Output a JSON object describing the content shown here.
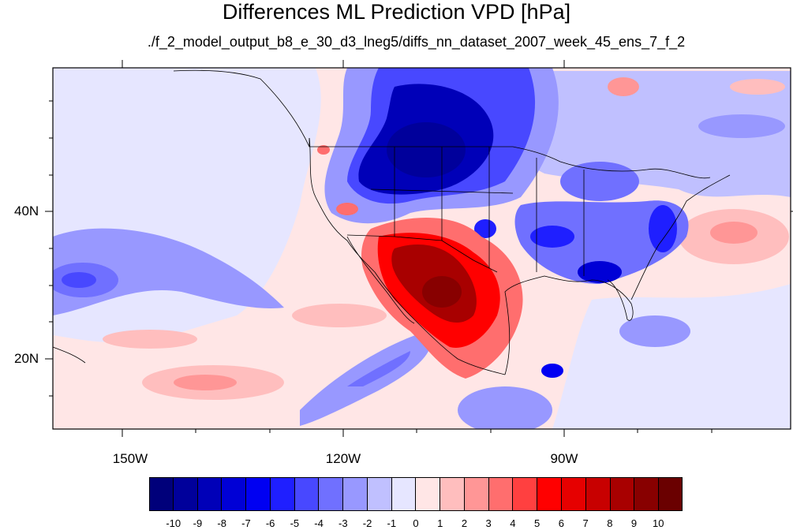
{
  "title": "Differences ML Prediction VPD [hPa]",
  "subtitle": "./f_2_model_output_b8_e_30_d3_lneg5/diffs_nn_dataset_2007_week_45_ens_7_f_2",
  "axes": {
    "lat_labels": [
      "40N",
      "20N"
    ],
    "lon_labels": [
      "150W",
      "120W",
      "90W"
    ]
  },
  "colorbar": {
    "labels": [
      "-10",
      "-9",
      "-8",
      "-7",
      "-6",
      "-5",
      "-4",
      "-3",
      "-2",
      "-1",
      "0",
      "1",
      "2",
      "3",
      "4",
      "5",
      "6",
      "7",
      "8",
      "9",
      "10"
    ],
    "colors": [
      "#00007a",
      "#00009b",
      "#0000b8",
      "#0000d6",
      "#0000f2",
      "#1f1fff",
      "#4848ff",
      "#7070ff",
      "#9898ff",
      "#c0c0ff",
      "#e6e6ff",
      "#ffe6e6",
      "#ffbebe",
      "#ff9696",
      "#ff6e6e",
      "#ff4040",
      "#ff0000",
      "#e60000",
      "#c80000",
      "#a80000",
      "#880000",
      "#6a0000"
    ]
  },
  "map": {
    "projection": "cylindrical equidistant",
    "lon_range": [
      -169,
      -70
    ],
    "lat_range": [
      11,
      60
    ],
    "background_color": "#ffe6e6",
    "features": [
      {
        "name": "Northwest US / Canada negative anomaly",
        "level": -9
      },
      {
        "name": "Southwest US / Mexico positive anomaly",
        "level": 9
      },
      {
        "name": "Southeast US negative anomaly",
        "level": -6
      },
      {
        "name": "Subtropical Pacific negative band",
        "level": -4
      }
    ]
  }
}
